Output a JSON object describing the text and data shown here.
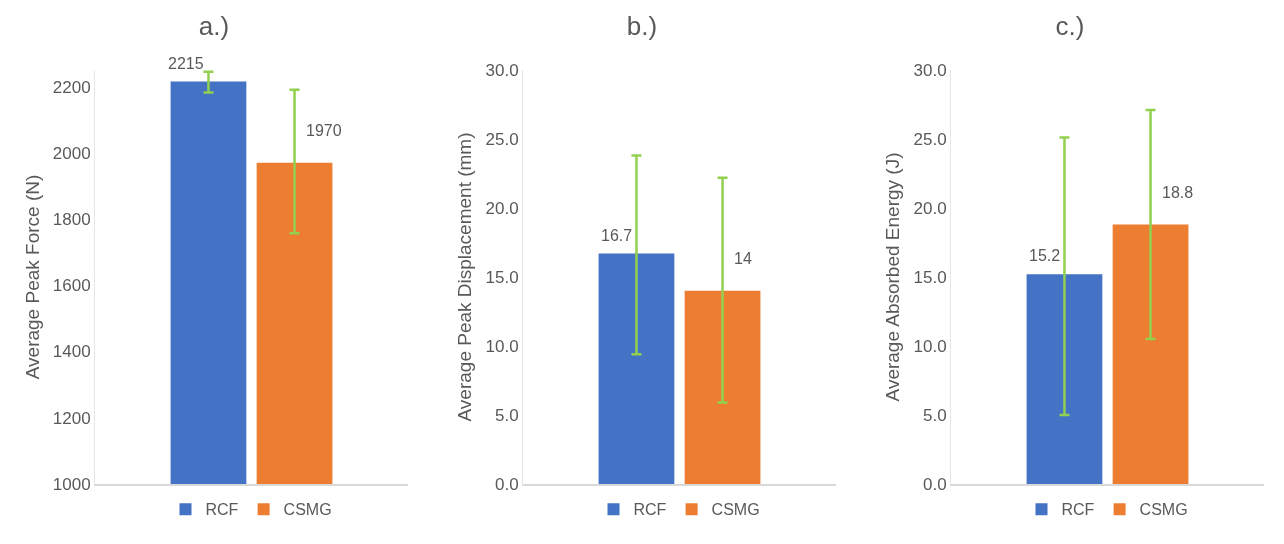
{
  "chart_data": [
    {
      "type": "bar",
      "title": "a.)",
      "ylabel": "Average Peak Force (N)",
      "categories": [
        null
      ],
      "ylim": [
        1000,
        2250
      ],
      "yticks": [
        1000,
        1200,
        1400,
        1600,
        1800,
        2000,
        2200
      ],
      "grid": false,
      "legend": "bottom",
      "data_labels": true,
      "series": [
        {
          "name": "RCF",
          "color": "#4472c4",
          "values": [
            2215
          ],
          "errors": [
            [
              2182,
              2245
            ]
          ]
        },
        {
          "name": "CSMG",
          "color": "#ed7d31",
          "values": [
            1970
          ],
          "errors": [
            [
              1757,
              2190
            ]
          ]
        }
      ]
    },
    {
      "type": "bar",
      "title": "b.)",
      "ylabel": "Average Peak Displacement (mm)",
      "categories": [
        null
      ],
      "ylim": [
        0,
        30
      ],
      "yticks": [
        {
          "value": 0,
          "label": "0.0"
        },
        {
          "value": 5,
          "label": "5.0"
        },
        {
          "value": 10,
          "label": "10.0"
        },
        {
          "value": 15,
          "label": "15.0"
        },
        {
          "value": 20,
          "label": "20.0"
        },
        {
          "value": 25,
          "label": "25.0"
        },
        {
          "value": 30,
          "label": "30.0"
        }
      ],
      "grid": false,
      "legend": "bottom",
      "data_labels": true,
      "series": [
        {
          "name": "RCF",
          "color": "#4472c4",
          "values": [
            16.7
          ],
          "errors": [
            [
              9.4,
              23.8
            ]
          ]
        },
        {
          "name": "CSMG",
          "color": "#ed7d31",
          "values": [
            14
          ],
          "errors": [
            [
              5.9,
              22.2
            ]
          ]
        }
      ]
    },
    {
      "type": "bar",
      "title": "c.)",
      "ylabel": "Average Absorbed Energy (J)",
      "categories": [
        null
      ],
      "ylim": [
        0,
        30
      ],
      "yticks": [
        {
          "value": 0,
          "label": "0.0"
        },
        {
          "value": 5,
          "label": "5.0"
        },
        {
          "value": 10,
          "label": "10.0"
        },
        {
          "value": 15,
          "label": "15.0"
        },
        {
          "value": 20,
          "label": "20.0"
        },
        {
          "value": 25,
          "label": "25.0"
        },
        {
          "value": 30,
          "label": "30.0"
        }
      ],
      "grid": false,
      "legend": "bottom",
      "data_labels": true,
      "series": [
        {
          "name": "RCF",
          "color": "#4472c4",
          "values": [
            15.2
          ],
          "errors": [
            [
              5.0,
              25.1
            ]
          ]
        },
        {
          "name": "CSMG",
          "color": "#ed7d31",
          "values": [
            18.8
          ],
          "errors": [
            [
              10.5,
              27.1
            ]
          ]
        }
      ]
    }
  ]
}
